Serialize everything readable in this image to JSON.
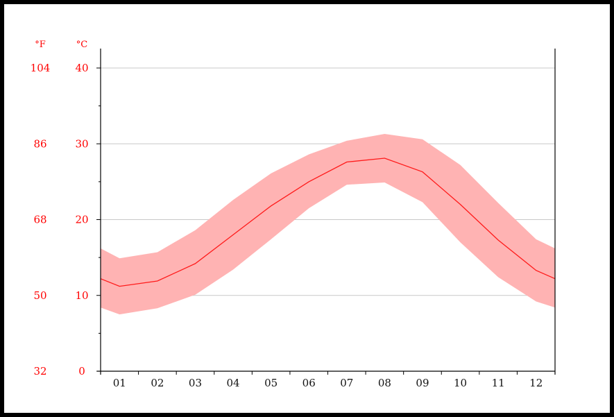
{
  "chart_data": {
    "type": "area",
    "categories": [
      "01",
      "02",
      "03",
      "04",
      "05",
      "06",
      "07",
      "08",
      "09",
      "10",
      "11",
      "12"
    ],
    "series": [
      {
        "role": "max",
        "values": [
          14.9,
          15.7,
          18.6,
          22.6,
          26.1,
          28.6,
          30.4,
          31.3,
          30.6,
          27.2,
          22.2,
          17.4
        ]
      },
      {
        "role": "mean",
        "values": [
          11.2,
          11.9,
          14.2,
          18.0,
          21.8,
          25.0,
          27.6,
          28.1,
          26.3,
          22.0,
          17.3,
          13.3
        ]
      },
      {
        "role": "min",
        "values": [
          7.5,
          8.3,
          10.1,
          13.4,
          17.4,
          21.5,
          24.6,
          24.9,
          22.3,
          17.0,
          12.4,
          9.2
        ]
      }
    ],
    "edge_values": {
      "mean": 12.2,
      "max": 16.2,
      "min": 8.4
    },
    "units": {
      "left": "°F",
      "right": "°C"
    },
    "yticks_c": [
      "40",
      "30",
      "20",
      "10",
      "0"
    ],
    "yticks_f": [
      "104",
      "86",
      "68",
      "50",
      "32"
    ],
    "ylim": [
      0,
      40
    ],
    "grid": true,
    "colors": {
      "line": "#ff1a1a",
      "band": "#ffb3b3",
      "axis_text": "#ff0000",
      "grid": "#c8c8c8"
    }
  }
}
